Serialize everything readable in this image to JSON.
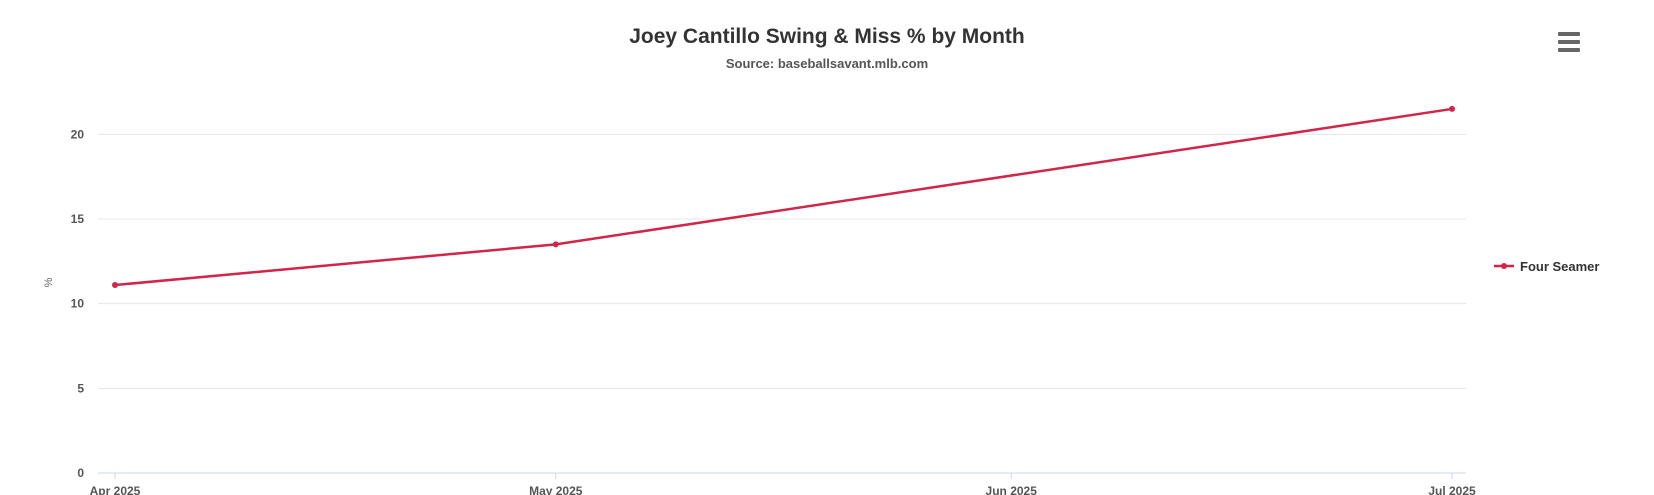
{
  "chart_data": {
    "type": "line",
    "title": "Joey Cantillo Swing & Miss % by Month",
    "subtitle": "Source: baseballsavant.mlb.com",
    "ylabel": "%",
    "xlabel": "",
    "ylim": [
      0,
      22.5
    ],
    "yticks": [
      0,
      5,
      10,
      15,
      20
    ],
    "categories": [
      "Apr 2025",
      "May 2025",
      "Jun 2025",
      "Jul 2025"
    ],
    "series": [
      {
        "name": "Four Seamer",
        "color": "#d1254a",
        "points": [
          {
            "x": "2025-04-01",
            "y": 11.1
          },
          {
            "x": "2025-05-01",
            "y": 13.5
          },
          {
            "x": "2025-07-01",
            "y": 21.5
          }
        ]
      }
    ],
    "grid": true,
    "legend_position": "right"
  },
  "menu": {
    "icon": "hamburger-menu-icon"
  }
}
